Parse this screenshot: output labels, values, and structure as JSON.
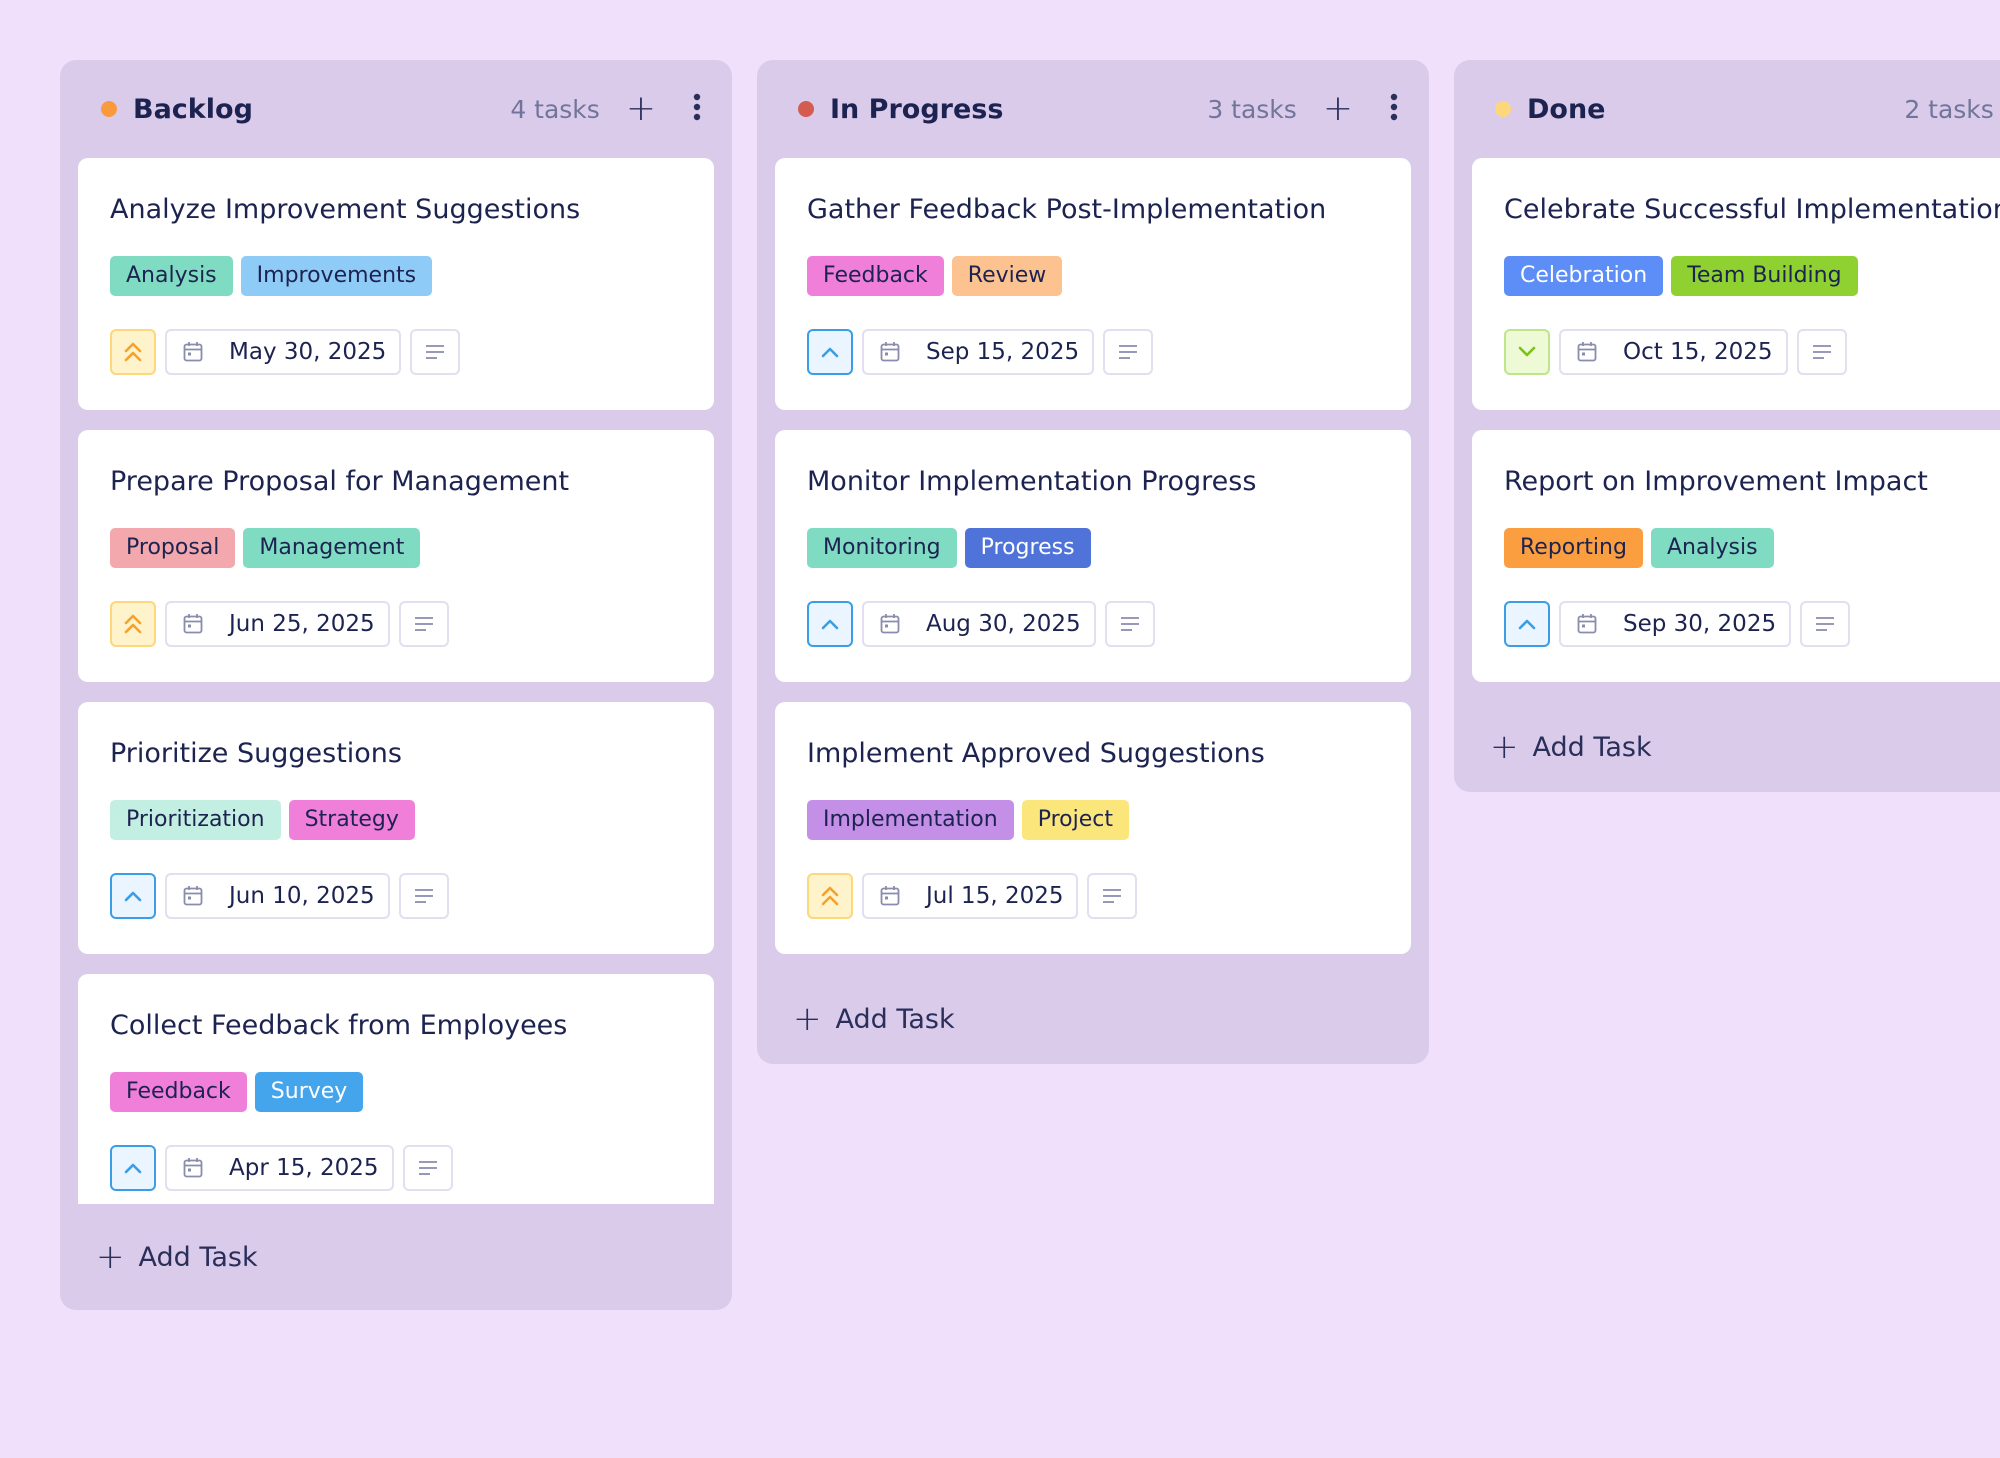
{
  "colors": {
    "background": "#f0e0fc",
    "column": "#dacbeb",
    "priority_high": "#f5a22c",
    "priority_medium": "#3a9ee6",
    "priority_low": "#7ac313"
  },
  "columns": [
    {
      "title": "Backlog",
      "count": "4 tasks",
      "dot_color": "#fb9a3c",
      "add_icon": "plus-icon",
      "menu_icon": "more-vertical-icon",
      "add_task_label": "Add Task",
      "cards": [
        {
          "title": "Analyze Improvement Suggestions",
          "tags": [
            {
              "label": "Analysis",
              "bg": "#7fdcc2",
              "fg": "#1d2350"
            },
            {
              "label": "Improvements",
              "bg": "#8fcbf7",
              "fg": "#1d2350"
            }
          ],
          "priority": "high",
          "date": "May 30, 2025"
        },
        {
          "title": "Prepare Proposal for Management",
          "tags": [
            {
              "label": "Proposal",
              "bg": "#f2a8ad",
              "fg": "#1d2350"
            },
            {
              "label": "Management",
              "bg": "#7fdcc2",
              "fg": "#1d2350"
            }
          ],
          "priority": "high",
          "date": "Jun 25, 2025"
        },
        {
          "title": "Prioritize Suggestions",
          "tags": [
            {
              "label": "Prioritization",
              "bg": "#c2efe1",
              "fg": "#1d2350"
            },
            {
              "label": "Strategy",
              "bg": "#f07fd9",
              "fg": "#1d2350"
            }
          ],
          "priority": "medium",
          "date": "Jun 10, 2025"
        },
        {
          "title": "Collect Feedback from Employees",
          "tags": [
            {
              "label": "Feedback",
              "bg": "#f07fd9",
              "fg": "#1d2350"
            },
            {
              "label": "Survey",
              "bg": "#45a5ec",
              "fg": "#ffffff"
            }
          ],
          "priority": "medium",
          "date": "Apr 15, 2025"
        }
      ]
    },
    {
      "title": "In Progress",
      "count": "3 tasks",
      "dot_color": "#d45b4f",
      "add_icon": "plus-icon",
      "menu_icon": "more-vertical-icon",
      "add_task_label": "Add Task",
      "cards": [
        {
          "title": "Gather Feedback Post-Implementation",
          "tags": [
            {
              "label": "Feedback",
              "bg": "#f07fd9",
              "fg": "#1d2350"
            },
            {
              "label": "Review",
              "bg": "#fcc28f",
              "fg": "#1d2350"
            }
          ],
          "priority": "medium",
          "date": "Sep 15, 2025"
        },
        {
          "title": "Monitor Implementation Progress",
          "tags": [
            {
              "label": "Monitoring",
              "bg": "#7fdcc2",
              "fg": "#1d2350"
            },
            {
              "label": "Progress",
              "bg": "#4f73d9",
              "fg": "#ffffff"
            }
          ],
          "priority": "medium",
          "date": "Aug 30, 2025"
        },
        {
          "title": "Implement Approved Suggestions",
          "tags": [
            {
              "label": "Implementation",
              "bg": "#c48fe6",
              "fg": "#1d2350"
            },
            {
              "label": "Project",
              "bg": "#fbe67c",
              "fg": "#1d2350"
            }
          ],
          "priority": "high",
          "date": "Jul 15, 2025"
        }
      ]
    },
    {
      "title": "Done",
      "count": "2 tasks",
      "dot_color": "#fcd77c",
      "add_icon": "plus-icon",
      "menu_icon": "more-vertical-icon",
      "add_task_label": "Add Task",
      "cards": [
        {
          "title": "Celebrate Successful Implementations",
          "tags": [
            {
              "label": "Celebration",
              "bg": "#5d8df7",
              "fg": "#ffffff"
            },
            {
              "label": "Team Building",
              "bg": "#8fd130",
              "fg": "#1d2350"
            }
          ],
          "priority": "low",
          "date": "Oct 15, 2025"
        },
        {
          "title": "Report on Improvement Impact",
          "tags": [
            {
              "label": "Reporting",
              "bg": "#fb9e3f",
              "fg": "#1d2350"
            },
            {
              "label": "Analysis",
              "bg": "#7fdcc2",
              "fg": "#1d2350"
            }
          ],
          "priority": "medium",
          "date": "Sep 30, 2025"
        }
      ]
    }
  ]
}
